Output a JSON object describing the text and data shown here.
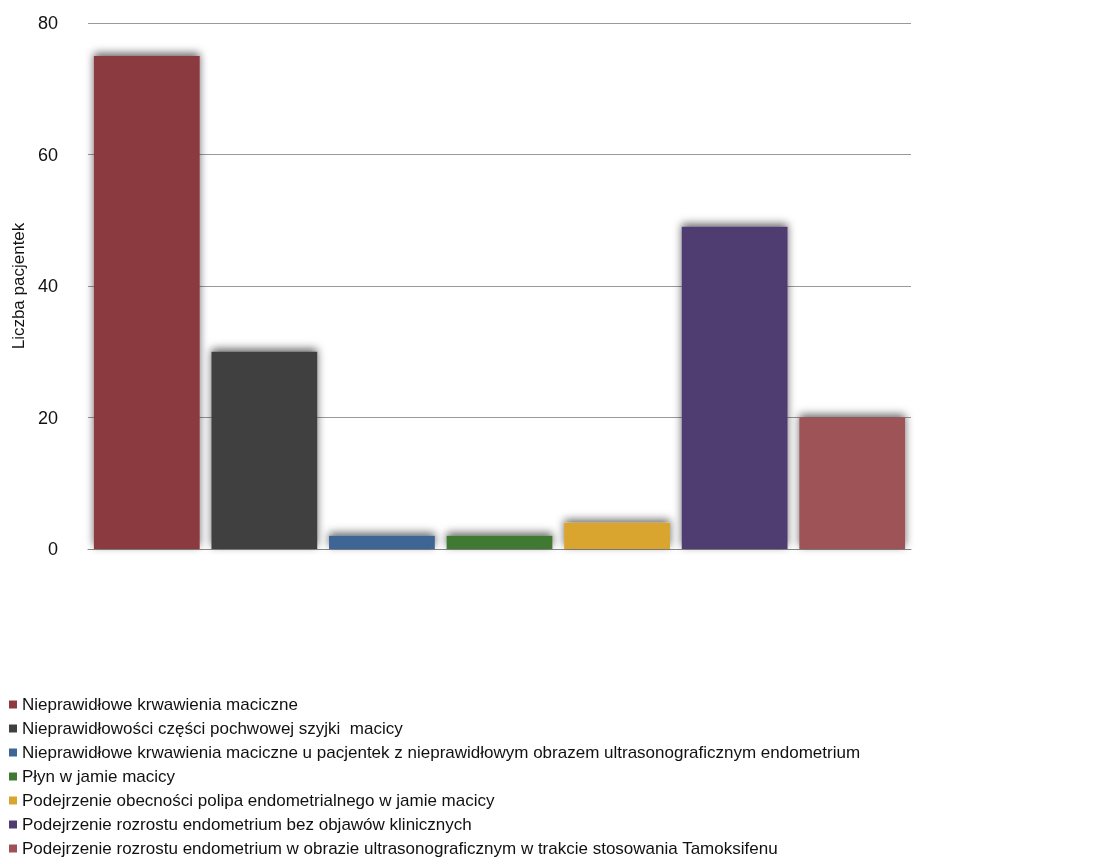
{
  "chart_data": {
    "type": "bar",
    "ylabel": "Liczba pacjentek",
    "categories": [
      null,
      null,
      null,
      null,
      null,
      null,
      null
    ],
    "series": [
      {
        "name": "Nieprawidłowe krwawienia maciczne",
        "color": "#8b3a40",
        "values": [
          75,
          null,
          null,
          null,
          null,
          null,
          null
        ]
      },
      {
        "name": "Nieprawidłowości części pochwowej szyjki  macicy",
        "color": "#404040",
        "values": [
          null,
          30,
          null,
          null,
          null,
          null,
          null
        ]
      },
      {
        "name": "Nieprawidłowe krwawienia maciczne u pacjentek z nieprawidłowym obrazem ultrasonograficznym endometrium",
        "color": "#3e6596",
        "values": [
          null,
          null,
          2,
          null,
          null,
          null,
          null
        ]
      },
      {
        "name": "Płyn w jamie macicy",
        "color": "#3f7a30",
        "values": [
          null,
          null,
          null,
          2,
          null,
          null,
          null
        ]
      },
      {
        "name": "Podejrzenie obecności polipa endometrialnego w jamie macicy",
        "color": "#d9a52e",
        "values": [
          null,
          null,
          null,
          null,
          4,
          null,
          null
        ]
      },
      {
        "name": "Podejrzenie rozrostu endometrium bez objawów klinicznych",
        "color": "#4f3d72",
        "values": [
          null,
          null,
          null,
          null,
          null,
          49,
          null
        ]
      },
      {
        "name": "Podejrzenie rozrostu endometrium w obrazie ultrasonograficznym w trakcie stosowania Tamoksifenu",
        "color": "#9e5257",
        "values": [
          null,
          null,
          null,
          null,
          null,
          null,
          20
        ]
      }
    ],
    "ylim": [
      0,
      80
    ],
    "yticks": [
      0,
      20,
      40,
      60,
      80
    ],
    "grid": "y",
    "legend": "bottom left"
  }
}
